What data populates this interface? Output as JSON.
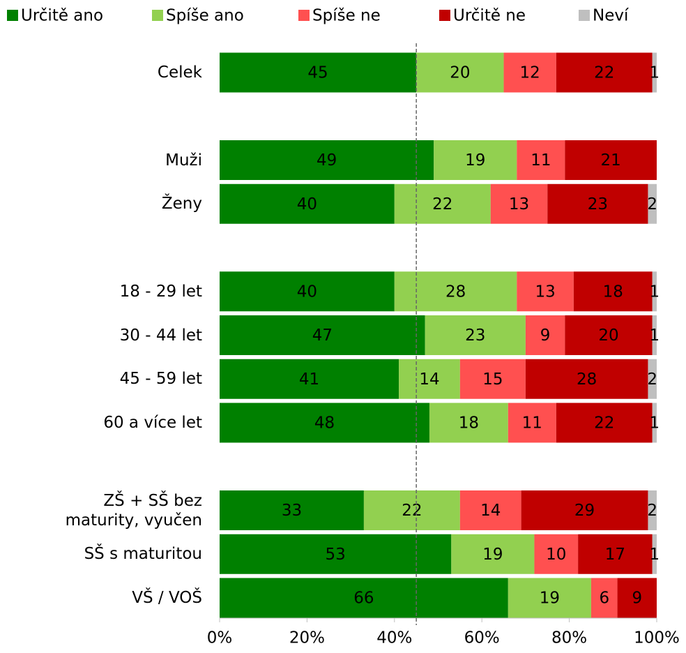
{
  "chart_data": {
    "type": "stacked_barh",
    "categories": [
      "Celek",
      null,
      "Muži",
      "Ženy",
      null,
      "18 - 29 let",
      "30 - 44 let",
      "45 - 59 let",
      "60 a více let",
      null,
      "ZŠ + SŠ bez\nmaturity, vyučen",
      "SŠ s maturitou",
      "VŠ / VOŠ"
    ],
    "series": [
      {
        "name": "Určitě ano",
        "color": "#008000",
        "values": [
          45,
          null,
          49,
          40,
          null,
          40,
          47,
          41,
          48,
          null,
          33,
          53,
          66
        ]
      },
      {
        "name": "Spíše ano",
        "color": "#92d050",
        "values": [
          20,
          null,
          19,
          22,
          null,
          28,
          23,
          14,
          18,
          null,
          22,
          19,
          19
        ]
      },
      {
        "name": "Spíše ne",
        "color": "#ff5050",
        "values": [
          12,
          null,
          11,
          13,
          null,
          13,
          9,
          15,
          11,
          null,
          14,
          10,
          6
        ]
      },
      {
        "name": "Určitě ne",
        "color": "#c00000",
        "values": [
          22,
          null,
          21,
          23,
          null,
          18,
          20,
          28,
          22,
          null,
          29,
          17,
          9
        ]
      },
      {
        "name": "Neví",
        "color": "#bfbfbf",
        "values": [
          1,
          null,
          null,
          2,
          null,
          1,
          1,
          2,
          1,
          null,
          2,
          1,
          null
        ]
      }
    ],
    "xlim": [
      0,
      100
    ],
    "xticks": [
      {
        "value": 0,
        "label": "0%"
      },
      {
        "value": 20,
        "label": "20%"
      },
      {
        "value": 40,
        "label": "40%"
      },
      {
        "value": 60,
        "label": "60%"
      },
      {
        "value": 80,
        "label": "80%"
      },
      {
        "value": 100,
        "label": "100%"
      }
    ],
    "reference_line": 45,
    "legend": "top"
  }
}
